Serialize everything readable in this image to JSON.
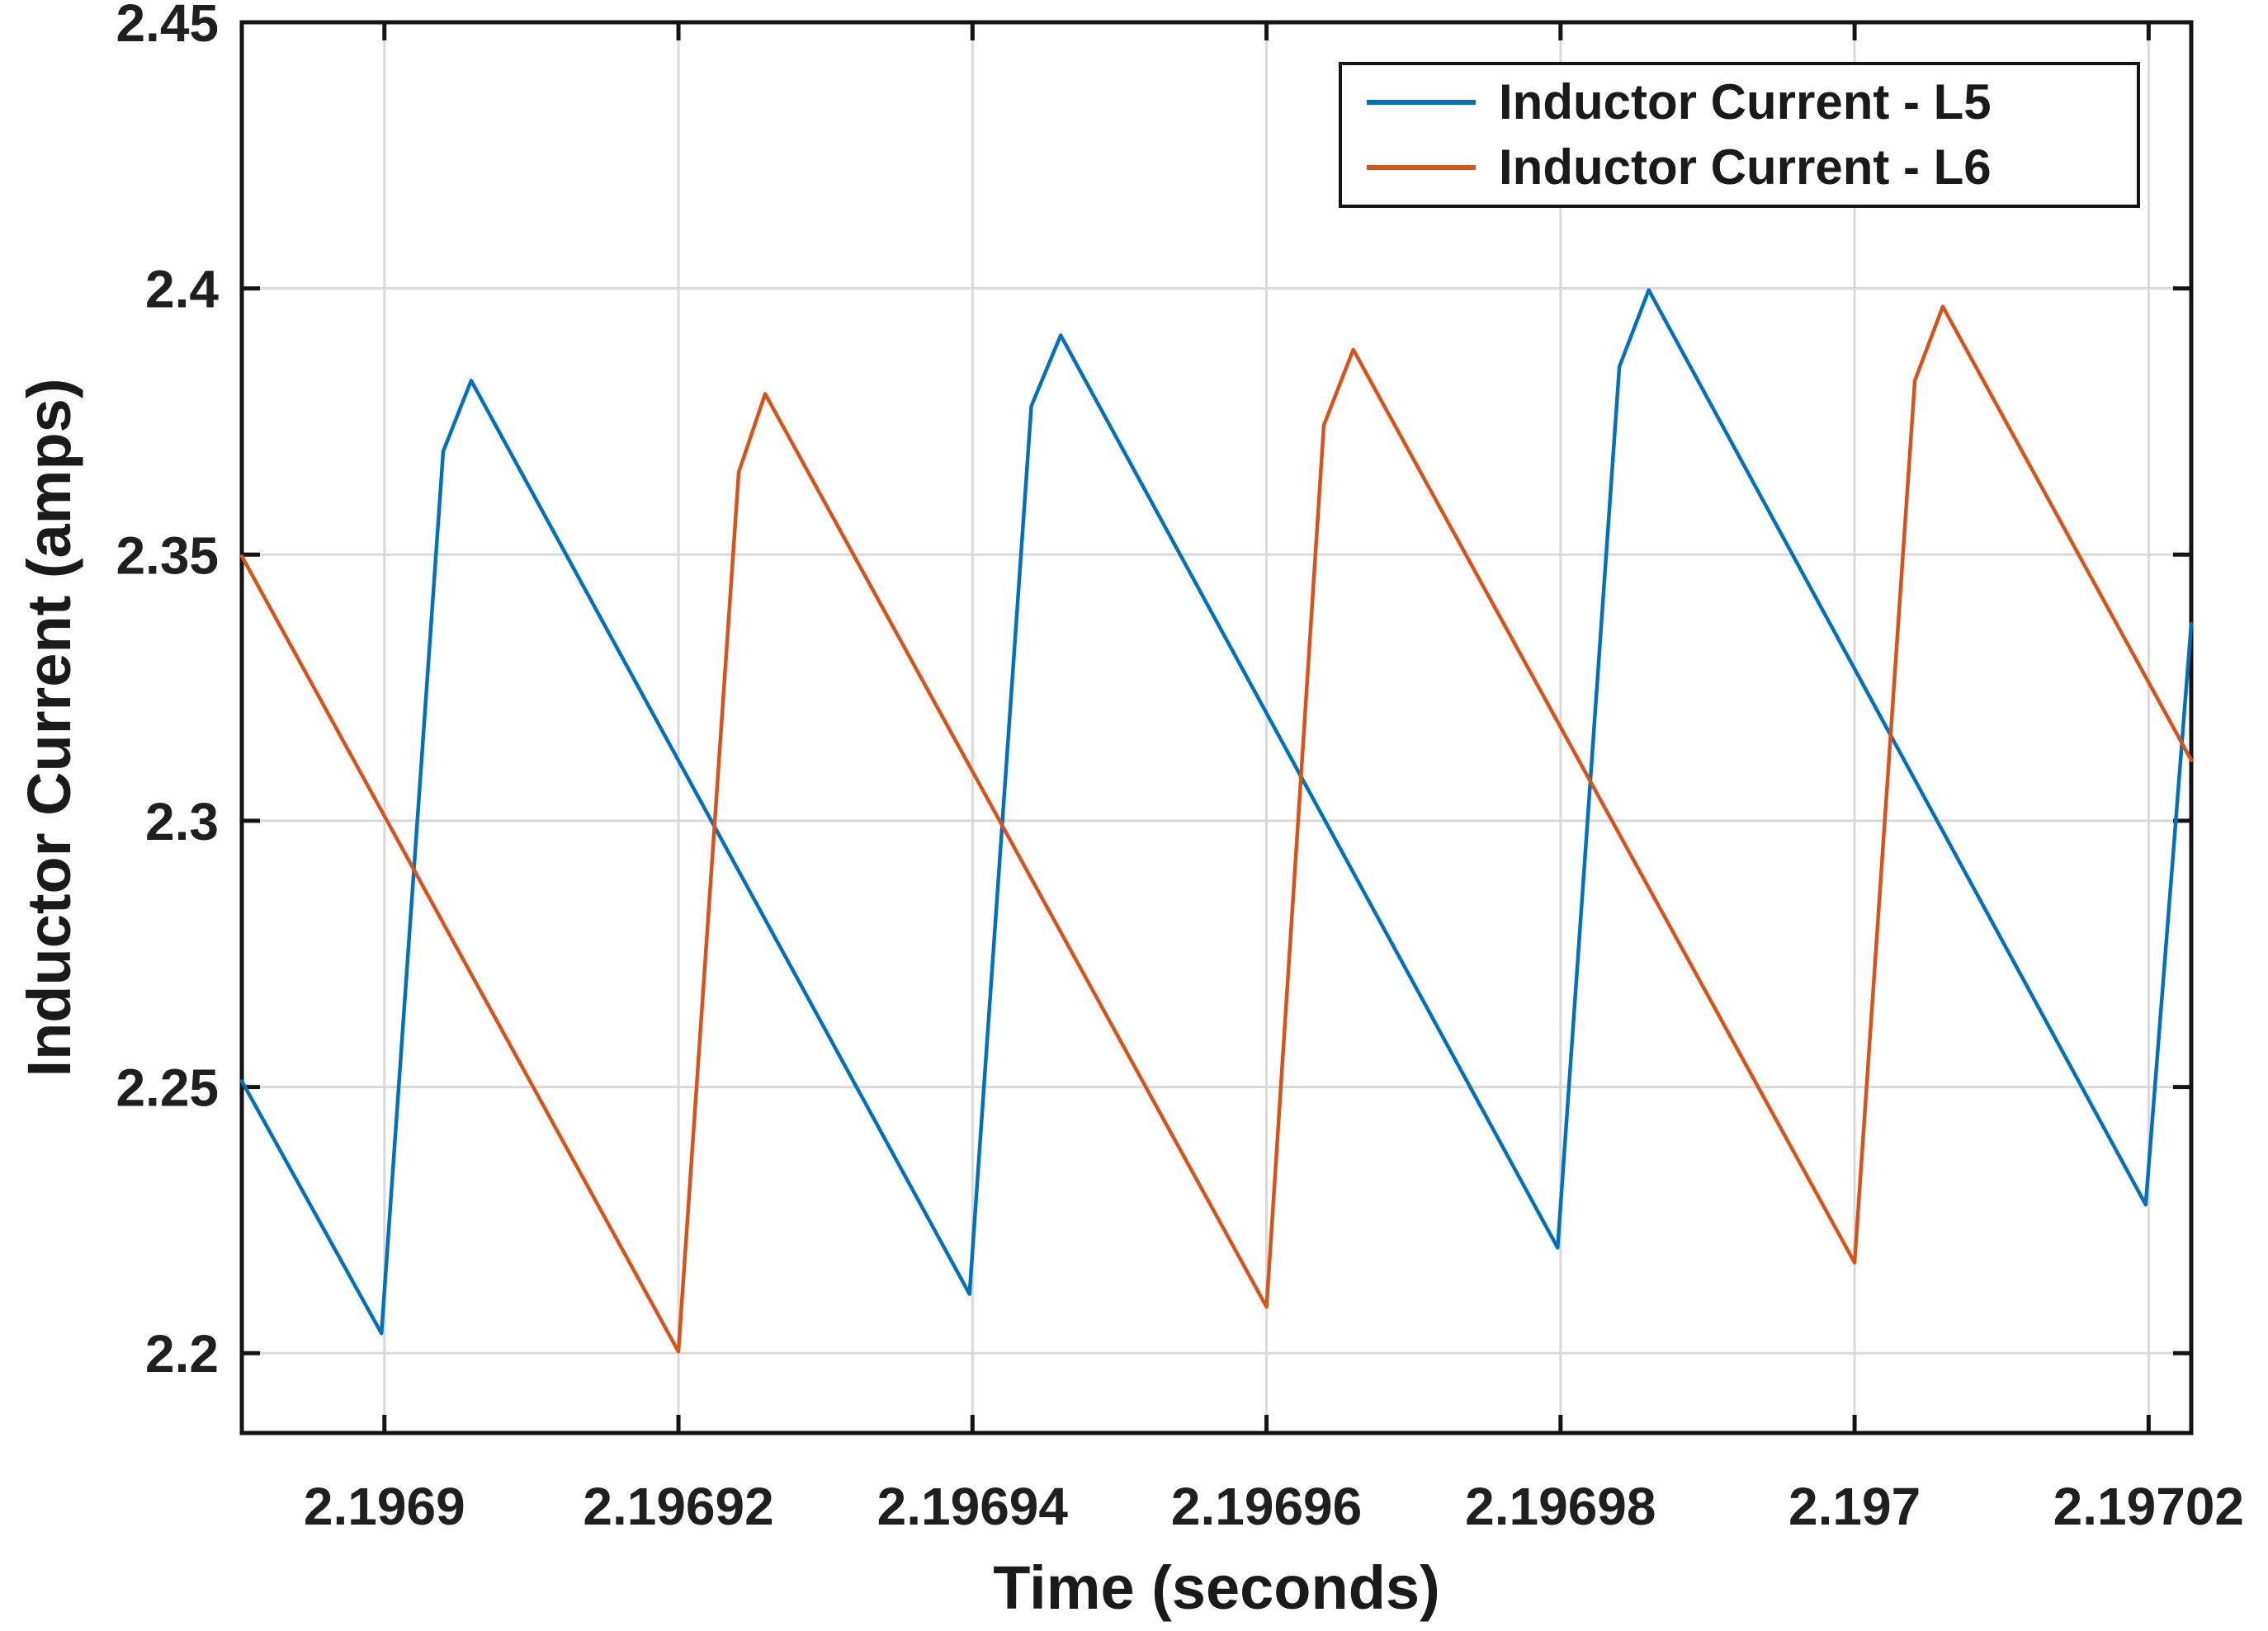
{
  "chart_data": {
    "type": "line",
    "title": "",
    "xlabel": "Time (seconds)",
    "ylabel": "Inductor Current (amps)",
    "xlim": [
      2.1968903,
      2.1970229
    ],
    "ylim": [
      2.185,
      2.45
    ],
    "grid": true,
    "legend_position": "top-right",
    "xticks": {
      "values": [
        2.1969,
        2.19692,
        2.19694,
        2.19696,
        2.19698,
        2.197,
        2.19702
      ],
      "labels": [
        "2.1969",
        "2.19692",
        "2.19694",
        "2.19696",
        "2.19698",
        "2.197",
        "2.19702"
      ]
    },
    "yticks": {
      "values": [
        2.2,
        2.25,
        2.3,
        2.35,
        2.4,
        2.45
      ],
      "labels": [
        "2.2",
        "2.25",
        "2.3",
        "2.35",
        "2.4",
        "2.45"
      ]
    },
    "colors": {
      "series_l5": "#0072BD",
      "series_l6": "#D95319",
      "grid": "#D9D9D9",
      "axis": "#141414",
      "tick_label": "#1F1F1F"
    },
    "series": [
      {
        "name": "Inductor Current - L5",
        "color": "#0072BD",
        "points": [
          [
            2.1968903,
            2.2511
          ],
          [
            2.1968998,
            2.2037
          ],
          [
            2.196904,
            2.3694
          ],
          [
            2.1969059,
            2.3827
          ],
          [
            2.1969398,
            2.2111
          ],
          [
            2.196944,
            2.3779
          ],
          [
            2.196946,
            2.3912
          ],
          [
            2.1969798,
            2.2198
          ],
          [
            2.196984,
            2.3853
          ],
          [
            2.196986,
            2.3997
          ],
          [
            2.1970198,
            2.2279
          ],
          [
            2.1970229,
            2.337
          ]
        ]
      },
      {
        "name": "Inductor Current - L6",
        "color": "#D95319",
        "points": [
          [
            2.1968903,
            2.3497
          ],
          [
            2.19692,
            2.2003
          ],
          [
            2.1969241,
            2.3655
          ],
          [
            2.1969259,
            2.3802
          ],
          [
            2.19696,
            2.2087
          ],
          [
            2.1969639,
            2.3743
          ],
          [
            2.1969659,
            2.3885
          ],
          [
            2.197,
            2.217
          ],
          [
            2.1970041,
            2.3827
          ],
          [
            2.197006,
            2.3966
          ],
          [
            2.1970229,
            2.3114
          ]
        ]
      }
    ]
  }
}
